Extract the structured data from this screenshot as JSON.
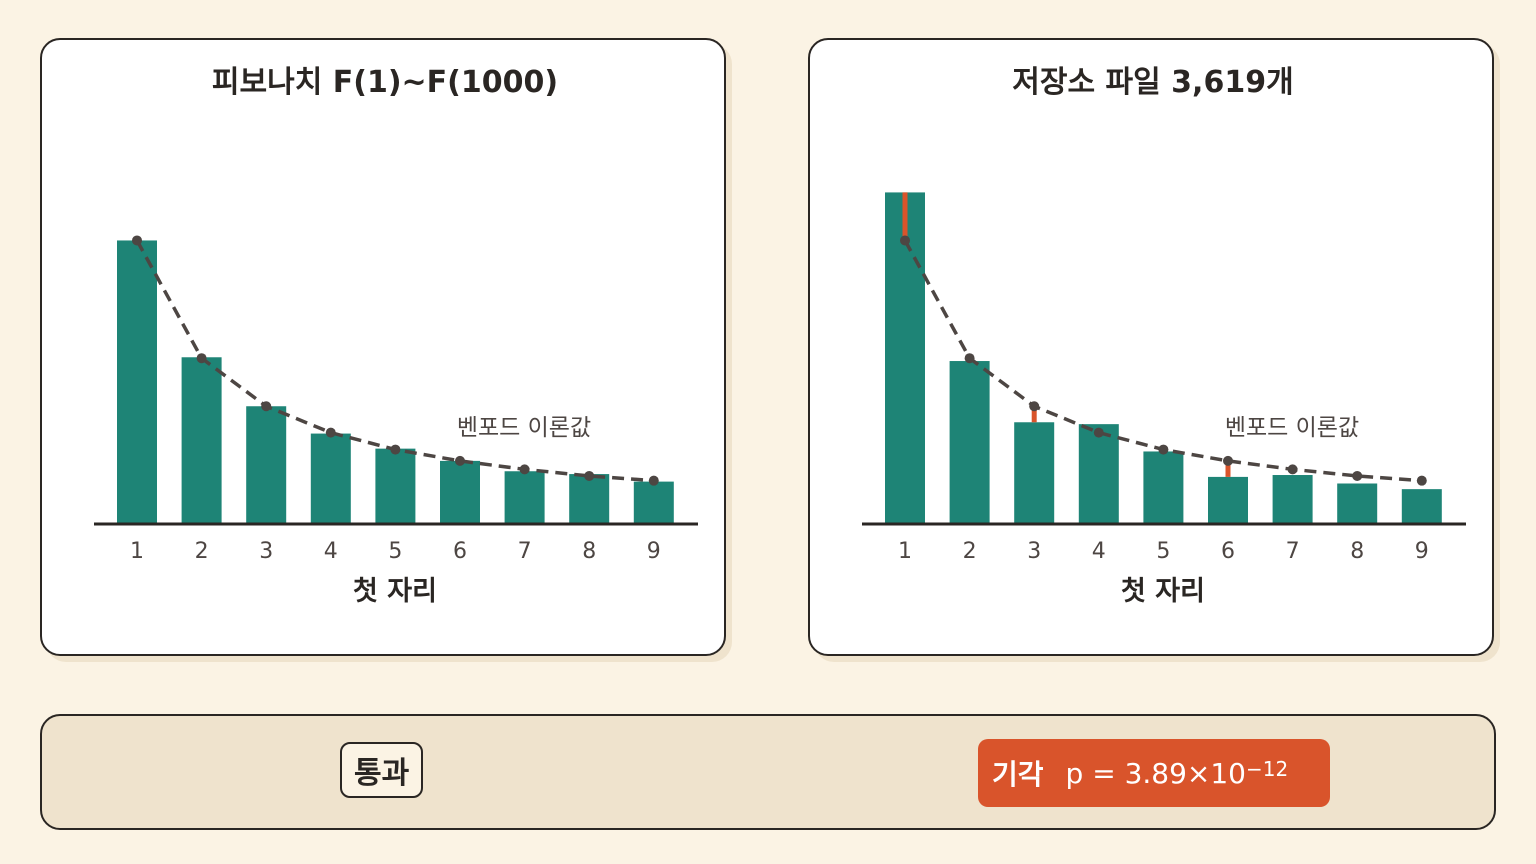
{
  "chart_data": [
    {
      "type": "bar",
      "title": "피보나치 F(1)~F(1000)",
      "xlabel": "첫 자리",
      "ylabel": "",
      "categories": [
        "1",
        "2",
        "3",
        "4",
        "5",
        "6",
        "7",
        "8",
        "9"
      ],
      "series": [
        {
          "values": [
            30.1,
            17.7,
            12.5,
            9.6,
            8.0,
            6.7,
            5.6,
            5.3,
            4.5
          ]
        }
      ],
      "theory": {
        "name": "벤포드 이론값",
        "values": [
          30.1,
          17.6,
          12.5,
          9.7,
          7.9,
          6.7,
          5.8,
          5.1,
          4.6
        ]
      },
      "ylim": [
        0,
        45
      ],
      "grid": false,
      "legend": "annotation near right side of theory line",
      "colors": {
        "bars": "#1e8476",
        "theory": "#4d4643",
        "deviation": "#d9542b"
      }
    },
    {
      "type": "bar",
      "title": "저장소 파일 3,619개",
      "xlabel": "첫 자리",
      "ylabel": "",
      "categories": [
        "1",
        "2",
        "3",
        "4",
        "5",
        "6",
        "7",
        "8",
        "9"
      ],
      "series": [
        {
          "values": [
            35.2,
            17.3,
            10.8,
            10.6,
            7.7,
            5.0,
            5.2,
            4.3,
            3.7
          ]
        }
      ],
      "theory": {
        "name": "벤포드 이론값",
        "values": [
          30.1,
          17.6,
          12.5,
          9.7,
          7.9,
          6.7,
          5.8,
          5.1,
          4.6
        ]
      },
      "ylim": [
        0,
        45
      ],
      "grid": false,
      "legend": "annotation near right side of theory line",
      "colors": {
        "bars": "#1e8476",
        "theory": "#4d4643",
        "deviation": "#d9542b"
      }
    }
  ],
  "summary": {
    "pass_label": "통과",
    "reject_label": "기각",
    "p_prefix": "p = 3.89×10",
    "p_exponent": "−12"
  },
  "colors": {
    "background": "#fbf3e4",
    "panel": "#ffffff",
    "bar_panel": "#efe3cd",
    "reject": "#d9542b"
  }
}
